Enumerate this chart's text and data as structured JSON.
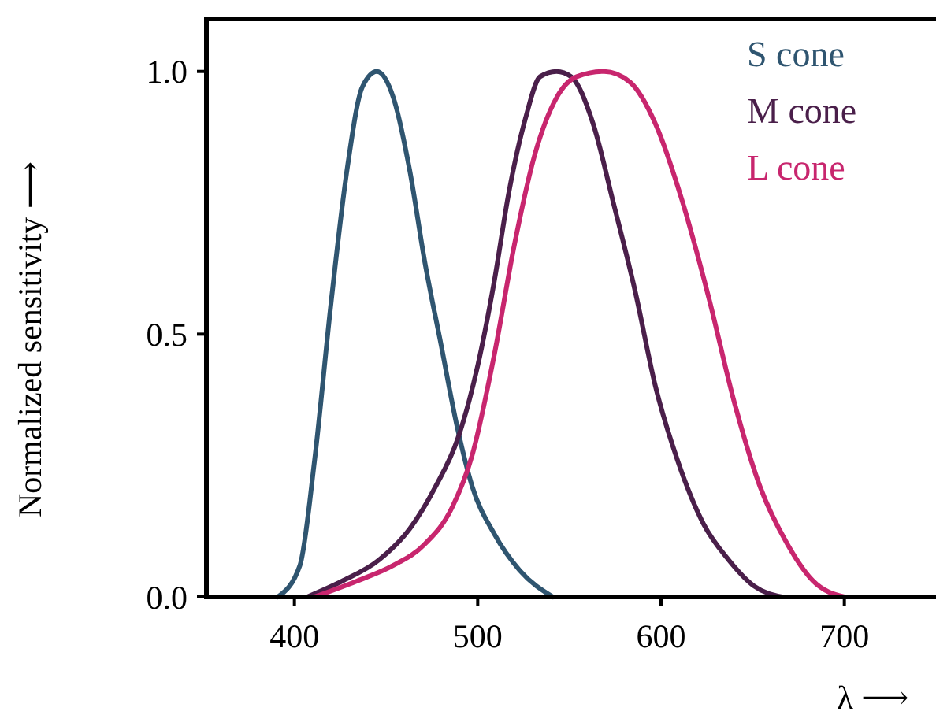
{
  "chart_data": {
    "type": "line",
    "xlabel": "λ ⟶",
    "ylabel": "Normalized sensitivity ⟶",
    "xlim": [
      352,
      750
    ],
    "ylim": [
      0,
      1.1
    ],
    "xticks": [
      400,
      500,
      600,
      700
    ],
    "yticks": [
      {
        "value": 0,
        "label": "0.0"
      },
      {
        "value": 0.5,
        "label": "0.5"
      },
      {
        "value": 1,
        "label": "1.0"
      }
    ],
    "grid": false,
    "legend": "top right",
    "marker": "none",
    "line_style": "solid",
    "series": [
      {
        "name": "S cone",
        "color": "#2f5570",
        "x": [
          391,
          403,
          411,
          420,
          429,
          437,
          445,
          454,
          463,
          471,
          480,
          489,
          497,
          509,
          523,
          541
        ],
        "values": [
          0,
          0.06,
          0.26,
          0.56,
          0.82,
          0.97,
          1.0,
          0.95,
          0.81,
          0.64,
          0.48,
          0.32,
          0.21,
          0.12,
          0.05,
          0
        ]
      },
      {
        "name": "M cone",
        "color": "#4a1f4a",
        "x": [
          407,
          426,
          446,
          463,
          477,
          489,
          500,
          509,
          517,
          526,
          534,
          543,
          551,
          563,
          574,
          586,
          597,
          609,
          623,
          637,
          651,
          666
        ],
        "values": [
          0,
          0.03,
          0.07,
          0.13,
          0.21,
          0.3,
          0.44,
          0.6,
          0.77,
          0.91,
          0.99,
          1.0,
          0.99,
          0.9,
          0.75,
          0.58,
          0.4,
          0.26,
          0.14,
          0.07,
          0.02,
          0
        ]
      },
      {
        "name": "L cone",
        "color": "#c8266e",
        "x": [
          411,
          434,
          454,
          471,
          486,
          497,
          509,
          520,
          531,
          543,
          554,
          569,
          583,
          597,
          611,
          626,
          640,
          654,
          669,
          683,
          700
        ],
        "values": [
          0,
          0.03,
          0.06,
          0.1,
          0.17,
          0.27,
          0.46,
          0.67,
          0.84,
          0.95,
          0.99,
          1.0,
          0.98,
          0.9,
          0.76,
          0.57,
          0.37,
          0.21,
          0.1,
          0.03,
          0
        ]
      }
    ]
  }
}
